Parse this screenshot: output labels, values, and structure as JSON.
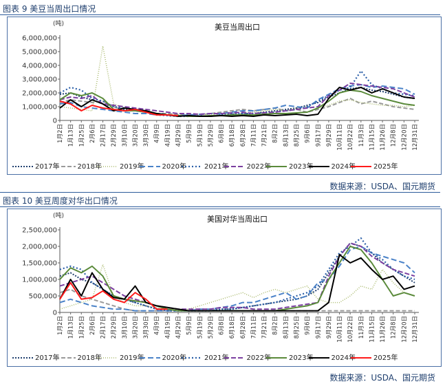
{
  "figures": [
    {
      "caption": "图表 9 美豆当周出口情况",
      "source": "数据来源：USDA、国元期货"
    },
    {
      "caption": "图表 10 美豆周度对华出口情况",
      "source": "数据来源：USDA、国元期货"
    }
  ],
  "chart_data": [
    {
      "type": "line",
      "title": "美豆当周出口",
      "unit_label": "(吨)",
      "ylim": [
        0,
        6000000
      ],
      "yticks": [
        "0",
        "1,000,000",
        "2,000,000",
        "3,000,000",
        "4,000,000",
        "5,000,000",
        "6,000,000"
      ],
      "categories": [
        "1月2日",
        "1月13日",
        "1月25日",
        "2月6日",
        "2月17日",
        "2月29日",
        "3月10日",
        "3月20日",
        "3月30日",
        "4月9日",
        "4月19日",
        "4月29日",
        "5月9日",
        "5月19日",
        "5月29日",
        "6月8日",
        "6月18日",
        "6月28日",
        "7月11日",
        "7月21日",
        "8月2日",
        "8月13日",
        "8月25日",
        "9月6日",
        "9月17日",
        "9月29日",
        "10月11日",
        "10月22日",
        "11月3日",
        "11月15日",
        "11月26日",
        "12月8日",
        "12月20日",
        "12月31日"
      ],
      "series": [
        {
          "name": "2017年",
          "color": "#1f3f6e",
          "dash": "2,2",
          "width": 2,
          "values": [
            1900000,
            2000000,
            1700000,
            1500000,
            1200000,
            1000000,
            800000,
            700000,
            600000,
            500000,
            400000,
            350000,
            300000,
            300000,
            350000,
            400000,
            450000,
            500000,
            500000,
            600000,
            700000,
            800000,
            900000,
            1100000,
            1300000,
            1700000,
            2000000,
            2300000,
            2400000,
            2200000,
            2100000,
            1900000,
            1700000,
            1600000
          ]
        },
        {
          "name": "2018年",
          "color": "#9a9a9a",
          "dash": "6,3",
          "width": 2,
          "values": [
            1300000,
            1500000,
            1400000,
            1300000,
            1400000,
            1000000,
            700000,
            800000,
            600000,
            500000,
            500000,
            450000,
            400000,
            400000,
            500000,
            600000,
            700000,
            800000,
            700000,
            800000,
            900000,
            700000,
            800000,
            600000,
            800000,
            1000000,
            1300000,
            1600000,
            1200000,
            1400000,
            1200000,
            1000000,
            900000,
            800000
          ]
        },
        {
          "name": "2019年",
          "color": "#a8b86a",
          "dash": "1,2",
          "width": 1.5,
          "values": [
            1000000,
            900000,
            800000,
            700000,
            5400000,
            1200000,
            900000,
            700000,
            600000,
            500000,
            450000,
            400000,
            350000,
            400000,
            450000,
            500000,
            500000,
            500000,
            600000,
            700000,
            800000,
            700000,
            900000,
            1000000,
            900000,
            1100000,
            1400000,
            1500000,
            1300000,
            1200000,
            1100000,
            1100000,
            1000000,
            1100000
          ]
        },
        {
          "name": "2020年",
          "color": "#4a82c8",
          "dash": "8,4",
          "width": 2,
          "values": [
            1200000,
            1300000,
            1000000,
            900000,
            800000,
            700000,
            600000,
            500000,
            500000,
            400000,
            400000,
            350000,
            400000,
            450000,
            500000,
            500000,
            600000,
            700000,
            700000,
            800000,
            900000,
            1100000,
            1000000,
            900000,
            1500000,
            1900000,
            2300000,
            2500000,
            2600000,
            2400000,
            2500000,
            2400000,
            2300000,
            1900000
          ]
        },
        {
          "name": "2021年",
          "color": "#2b5fa8",
          "dash": "2,3",
          "width": 2.2,
          "values": [
            2000000,
            2400000,
            2200000,
            1600000,
            1400000,
            1000000,
            900000,
            800000,
            600000,
            400000,
            350000,
            300000,
            300000,
            350000,
            300000,
            400000,
            450000,
            500000,
            500000,
            550000,
            600000,
            700000,
            800000,
            1000000,
            1400000,
            1800000,
            2200000,
            2400000,
            3600000,
            2600000,
            2300000,
            2000000,
            1900000,
            1800000
          ]
        },
        {
          "name": "2022年",
          "color": "#7b3fa0",
          "dash": "7,3",
          "width": 2,
          "values": [
            1500000,
            1700000,
            1600000,
            1800000,
            1200000,
            1100000,
            1000000,
            900000,
            800000,
            700000,
            600000,
            500000,
            500000,
            450000,
            500000,
            500000,
            550000,
            600000,
            500000,
            550000,
            600000,
            700000,
            800000,
            900000,
            1000000,
            1800000,
            2200000,
            2700000,
            2600000,
            2500000,
            2400000,
            2300000,
            2000000,
            1700000
          ]
        },
        {
          "name": "2023年",
          "color": "#5a8a3a",
          "dash": "",
          "width": 2,
          "values": [
            1500000,
            2000000,
            1800000,
            2000000,
            1600000,
            800000,
            700000,
            700000,
            600000,
            500000,
            400000,
            350000,
            300000,
            300000,
            350000,
            350000,
            400000,
            400000,
            400000,
            450000,
            500000,
            500000,
            550000,
            600000,
            900000,
            1400000,
            2000000,
            2200000,
            2100000,
            1800000,
            1600000,
            1400000,
            1200000,
            1100000
          ]
        },
        {
          "name": "2024年",
          "color": "#000000",
          "dash": "",
          "width": 2,
          "values": [
            900000,
            1500000,
            1000000,
            1500000,
            1200000,
            700000,
            900000,
            800000,
            700000,
            500000,
            400000,
            300000,
            350000,
            300000,
            300000,
            350000,
            300000,
            350000,
            300000,
            400000,
            350000,
            400000,
            450000,
            350000,
            450000,
            1600000,
            2400000,
            2200000,
            2400000,
            2000000,
            2300000,
            2000000,
            1700000,
            1600000
          ]
        },
        {
          "name": "2025年",
          "color": "#ff1a1a",
          "dash": "",
          "width": 2,
          "values": [
            1400000,
            1200000,
            700000,
            1100000,
            900000,
            800000,
            700000,
            800000,
            600000,
            400000,
            400000,
            350000,
            null,
            null,
            null,
            null,
            null,
            null,
            null,
            null,
            null,
            null,
            null,
            null,
            null,
            null,
            null,
            null,
            null,
            null,
            null,
            null,
            null,
            null
          ]
        }
      ]
    },
    {
      "type": "line",
      "title": "美国对华当周出口",
      "unit_label": "(吨)",
      "ylim": [
        0,
        2500000
      ],
      "yticks": [
        "0",
        "500,000",
        "1,000,000",
        "1,500,000",
        "2,000,000",
        "2,500,000"
      ],
      "categories": [
        "1月2日",
        "1月13日",
        "1月25日",
        "2月6日",
        "2月17日",
        "2月29日",
        "3月10日",
        "3月20日",
        "3月30日",
        "4月9日",
        "4月19日",
        "4月29日",
        "5月9日",
        "5月19日",
        "5月29日",
        "6月8日",
        "6月18日",
        "6月28日",
        "7月11日",
        "7月21日",
        "8月2日",
        "8月13日",
        "8月25日",
        "9月6日",
        "9月17日",
        "9月29日",
        "10月11日",
        "10月22日",
        "11月3日",
        "11月15日",
        "11月26日",
        "12月8日",
        "12月20日",
        "12月31日"
      ],
      "series": [
        {
          "name": "2017年",
          "color": "#1f3f6e",
          "dash": "2,2",
          "width": 2,
          "values": [
            1100000,
            1200000,
            1000000,
            900000,
            700000,
            500000,
            400000,
            300000,
            200000,
            100000,
            100000,
            50000,
            50000,
            50000,
            50000,
            100000,
            100000,
            150000,
            200000,
            250000,
            300000,
            350000,
            400000,
            500000,
            700000,
            1200000,
            1700000,
            2100000,
            2000000,
            1800000,
            1500000,
            1300000,
            1100000,
            900000
          ]
        },
        {
          "name": "2018年",
          "color": "#9a9a9a",
          "dash": "6,3",
          "width": 2,
          "values": [
            600000,
            700000,
            500000,
            400000,
            300000,
            200000,
            100000,
            50000,
            50000,
            50000,
            50000,
            50000,
            50000,
            50000,
            50000,
            50000,
            50000,
            50000,
            50000,
            50000,
            50000,
            50000,
            50000,
            50000,
            50000,
            50000,
            50000,
            50000,
            50000,
            50000,
            50000,
            50000,
            50000,
            50000
          ]
        },
        {
          "name": "2019年",
          "color": "#a8b86a",
          "dash": "1,2",
          "width": 1.5,
          "values": [
            100000,
            200000,
            300000,
            400000,
            1450000,
            500000,
            300000,
            200000,
            200000,
            150000,
            100000,
            100000,
            100000,
            200000,
            300000,
            400000,
            500000,
            600000,
            450000,
            600000,
            700000,
            600000,
            700000,
            800000,
            400000,
            300000,
            300000,
            500000,
            800000,
            700000,
            1300000,
            900000,
            600000,
            500000
          ]
        },
        {
          "name": "2020年",
          "color": "#4a82c8",
          "dash": "8,4",
          "width": 2,
          "values": [
            300000,
            400000,
            300000,
            200000,
            150000,
            100000,
            100000,
            50000,
            50000,
            50000,
            50000,
            50000,
            50000,
            100000,
            100000,
            150000,
            200000,
            300000,
            300000,
            400000,
            500000,
            600000,
            400000,
            500000,
            900000,
            1000000,
            1400000,
            1900000,
            2000000,
            1800000,
            1700000,
            1600000,
            1500000,
            1200000
          ]
        },
        {
          "name": "2021年",
          "color": "#2b5fa8",
          "dash": "2,3",
          "width": 2.2,
          "values": [
            1300000,
            1400000,
            1300000,
            900000,
            700000,
            500000,
            400000,
            300000,
            200000,
            100000,
            50000,
            50000,
            50000,
            50000,
            50000,
            100000,
            100000,
            150000,
            200000,
            250000,
            300000,
            400000,
            500000,
            600000,
            800000,
            1300000,
            1800000,
            2000000,
            2250000,
            1800000,
            1600000,
            1300000,
            1100000,
            1000000
          ]
        },
        {
          "name": "2022年",
          "color": "#7b3fa0",
          "dash": "7,3",
          "width": 2,
          "values": [
            800000,
            900000,
            1000000,
            1100000,
            900000,
            700000,
            500000,
            400000,
            300000,
            200000,
            150000,
            100000,
            100000,
            100000,
            100000,
            150000,
            150000,
            150000,
            100000,
            100000,
            100000,
            150000,
            200000,
            250000,
            300000,
            1100000,
            1700000,
            2100000,
            2000000,
            1700000,
            1500000,
            1300000,
            1200000,
            1100000
          ]
        },
        {
          "name": "2023年",
          "color": "#5a8a3a",
          "dash": "",
          "width": 2,
          "values": [
            1000000,
            1350000,
            1200000,
            1400000,
            1100000,
            500000,
            400000,
            350000,
            300000,
            200000,
            100000,
            50000,
            50000,
            50000,
            50000,
            50000,
            50000,
            50000,
            50000,
            50000,
            50000,
            100000,
            150000,
            200000,
            300000,
            1000000,
            1500000,
            2000000,
            1900000,
            1500000,
            1000000,
            500000,
            600000,
            500000
          ]
        },
        {
          "name": "2024年",
          "color": "#000000",
          "dash": "",
          "width": 2,
          "values": [
            400000,
            1000000,
            500000,
            1200000,
            700000,
            450000,
            400000,
            800000,
            300000,
            200000,
            150000,
            100000,
            50000,
            50000,
            50000,
            50000,
            50000,
            50000,
            50000,
            50000,
            50000,
            50000,
            50000,
            50000,
            50000,
            300000,
            1750000,
            1500000,
            1650000,
            1300000,
            1000000,
            1100000,
            700000,
            800000
          ]
        },
        {
          "name": "2025年",
          "color": "#ff1a1a",
          "dash": "",
          "width": 2,
          "values": [
            400000,
            900000,
            400000,
            450000,
            650000,
            400000,
            300000,
            600000,
            400000,
            100000,
            100000,
            null,
            null,
            null,
            null,
            null,
            null,
            null,
            null,
            null,
            null,
            null,
            null,
            null,
            null,
            null,
            null,
            null,
            null,
            null,
            null,
            null,
            null,
            null
          ]
        }
      ]
    }
  ]
}
